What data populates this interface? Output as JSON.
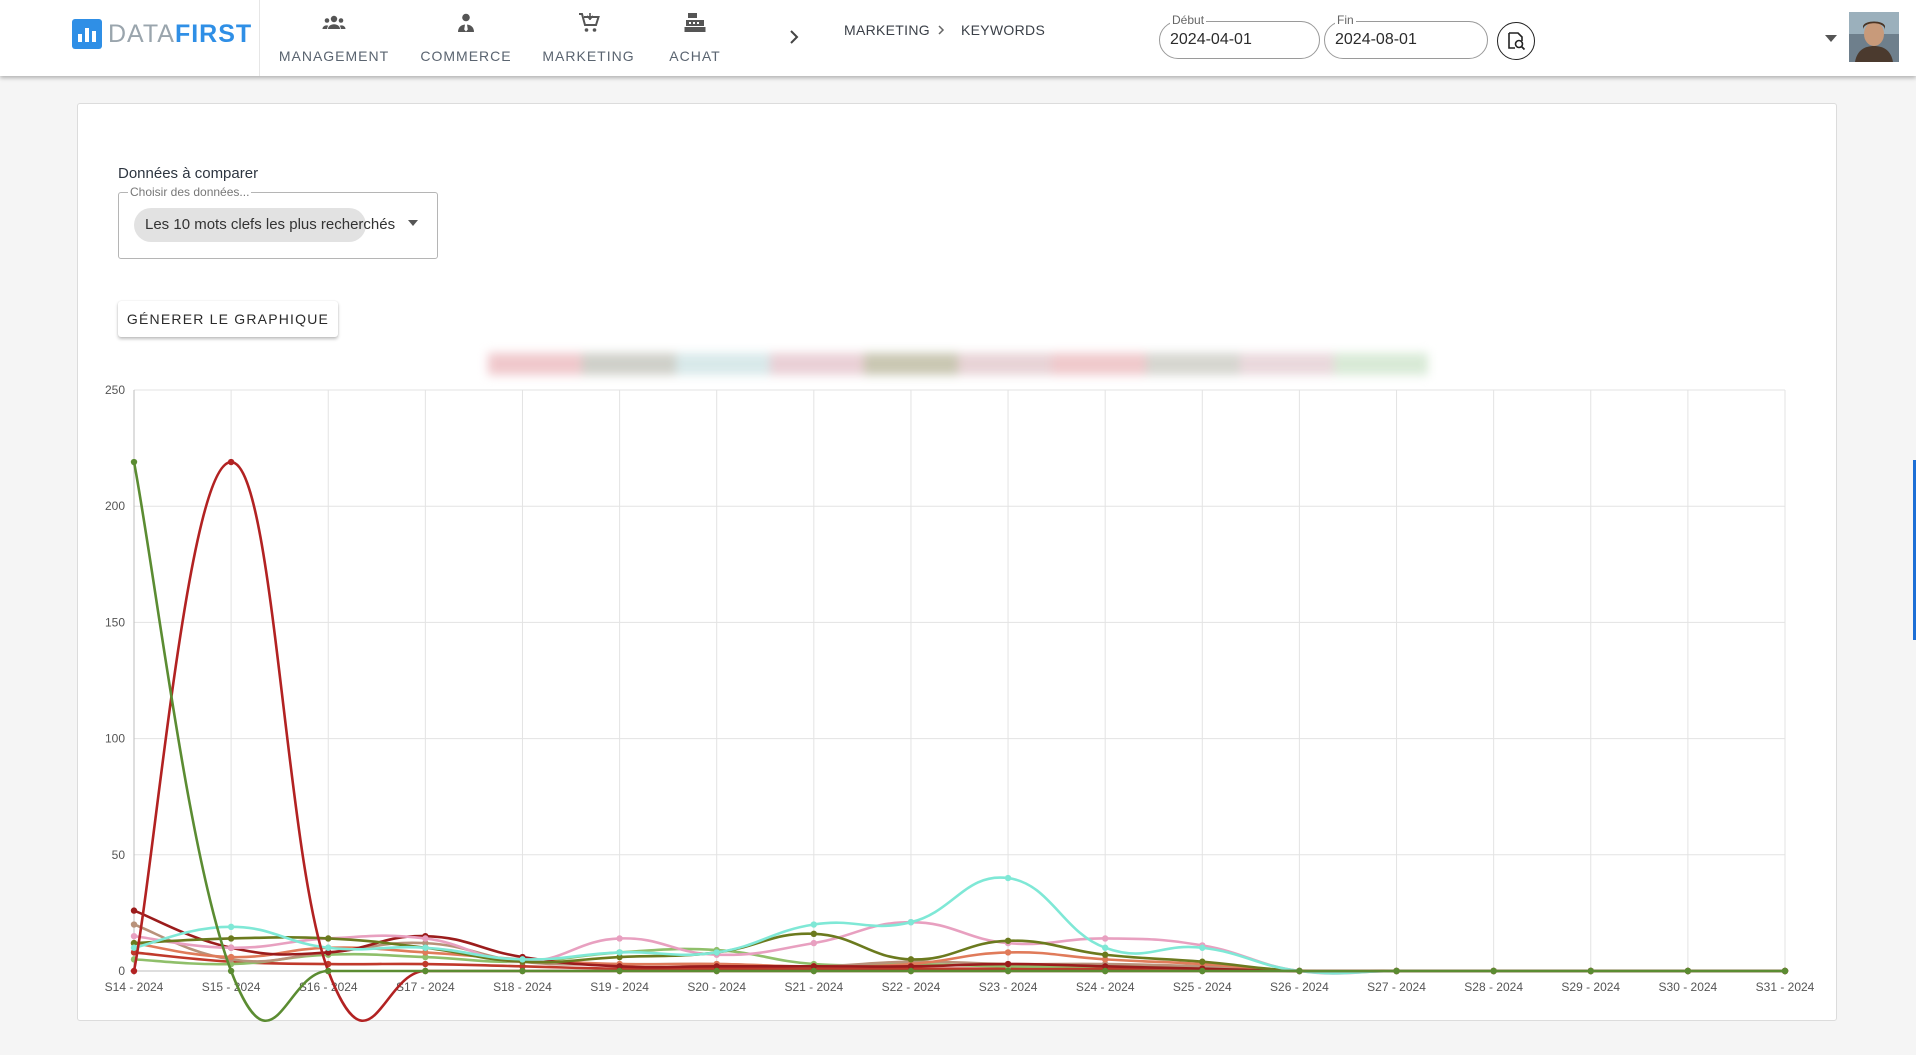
{
  "app": {
    "logo_part1": "DATA",
    "logo_part2": "FIRST"
  },
  "nav": [
    {
      "label": "MANAGEMENT",
      "icon": "groups-icon"
    },
    {
      "label": "COMMERCE",
      "icon": "person-tie-icon"
    },
    {
      "label": "MARKETING",
      "icon": "cart-icon"
    },
    {
      "label": "ACHAT",
      "icon": "cash-register-icon"
    }
  ],
  "breadcrumb": {
    "section": "MARKETING",
    "page": "KEYWORDS"
  },
  "dates": {
    "start_label": "Début",
    "start_value": "2024-04-01",
    "end_label": "Fin",
    "end_value": "2024-08-01"
  },
  "filters": {
    "compare_label": "Données à comparer",
    "select_placeholder": "Choisir des données...",
    "selected_chip": "Les 10 mots clefs les plus recherchés",
    "generate_label": "GÉNERER LE GRAPHIQUE"
  },
  "colors": {
    "accent": "#2f8fe6",
    "legend_swatches": [
      "#f0c8cc",
      "#cfd0c9",
      "#d8e9ea",
      "#ead0d6",
      "#c9c7b2",
      "#e8d3d6",
      "#f0c9cc",
      "#d6d6d0",
      "#ead8dc",
      "#d8ead6"
    ]
  },
  "chart_data": {
    "type": "line",
    "categories": [
      "S14 - 2024",
      "S15 - 2024",
      "S16 - 2024",
      "S17 - 2024",
      "S18 - 2024",
      "S19 - 2024",
      "S20 - 2024",
      "S21 - 2024",
      "S22 - 2024",
      "S23 - 2024",
      "S24 - 2024",
      "S25 - 2024",
      "S26 - 2024",
      "S27 - 2024",
      "S28 - 2024",
      "S29 - 2024",
      "S30 - 2024",
      "S31 - 2024"
    ],
    "ylim": [
      0,
      250
    ],
    "yticks": [
      0,
      50,
      100,
      150,
      200,
      250
    ],
    "grid": true,
    "series": [
      {
        "color": "#5b8c32",
        "values": [
          219,
          0,
          0,
          0,
          0,
          0,
          0,
          0,
          0,
          0,
          0,
          0,
          0,
          0,
          0,
          0,
          0,
          0
        ]
      },
      {
        "color": "#b22222",
        "values": [
          0,
          219,
          0,
          0,
          0,
          0,
          0,
          0,
          0,
          0,
          0,
          0,
          0,
          0,
          0,
          0,
          0,
          0
        ]
      },
      {
        "color": "#7fe8d6",
        "values": [
          10,
          19,
          10,
          10,
          5,
          8,
          8,
          20,
          21,
          40,
          10,
          10,
          0,
          0,
          0,
          0,
          0,
          0
        ]
      },
      {
        "color": "#6b7a1e",
        "values": [
          12,
          14,
          14,
          10,
          4,
          6,
          8,
          16,
          5,
          13,
          7,
          4,
          0,
          0,
          0,
          0,
          0,
          0
        ]
      },
      {
        "color": "#e8a0c0",
        "values": [
          15,
          10,
          14,
          14,
          4,
          14,
          7,
          12,
          21,
          12,
          14,
          11,
          0,
          0,
          0,
          0,
          0,
          0
        ]
      },
      {
        "color": "#9b1c1c",
        "values": [
          26,
          10,
          8,
          15,
          6,
          2,
          2,
          2,
          2,
          3,
          2,
          1,
          0,
          0,
          0,
          0,
          0,
          0
        ]
      },
      {
        "color": "#e07b5a",
        "values": [
          12,
          6,
          10,
          8,
          5,
          3,
          3,
          2,
          3,
          8,
          5,
          3,
          0,
          0,
          0,
          0,
          0,
          0
        ]
      },
      {
        "color": "#b8927a",
        "values": [
          20,
          5,
          8,
          12,
          4,
          3,
          3,
          2,
          4,
          3,
          3,
          2,
          0,
          0,
          0,
          0,
          0,
          0
        ]
      },
      {
        "color": "#8fbf6a",
        "values": [
          5,
          3,
          7,
          6,
          4,
          8,
          9,
          3,
          3,
          2,
          2,
          2,
          0,
          0,
          0,
          0,
          0,
          0
        ]
      },
      {
        "color": "#c0392b",
        "values": [
          8,
          4,
          3,
          3,
          2,
          1,
          1,
          1,
          1,
          1,
          1,
          1,
          0,
          0,
          0,
          0,
          0,
          0
        ]
      }
    ]
  }
}
